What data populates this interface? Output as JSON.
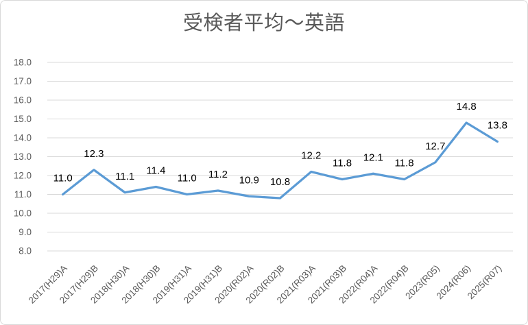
{
  "chart_data": {
    "type": "line",
    "title": "受検者平均〜英語",
    "categories": [
      "2017(H29)A",
      "2017(H29)B",
      "2018(H30)A",
      "2018(H30)B",
      "2019(H31)A",
      "2019(H31)B",
      "2020(R02)A",
      "2020(R02)B",
      "2021(R03)A",
      "2021(R03)B",
      "2022(R04)A",
      "2022(R04)B",
      "2023(R05)",
      "2024(R06)",
      "2025(R07)"
    ],
    "values": [
      11.0,
      12.3,
      11.1,
      11.4,
      11.0,
      11.2,
      10.9,
      10.8,
      12.2,
      11.8,
      12.1,
      11.8,
      12.7,
      14.8,
      13.8
    ],
    "data_labels": [
      "11.0",
      "12.3",
      "11.1",
      "11.4",
      "11.0",
      "11.2",
      "10.9",
      "10.8",
      "12.2",
      "11.8",
      "12.1",
      "11.8",
      "12.7",
      "14.8",
      "13.8"
    ],
    "y_ticks": [
      "18.0",
      "17.0",
      "16.0",
      "15.0",
      "14.0",
      "13.0",
      "12.0",
      "11.0",
      "10.0",
      "9.0",
      "8.0"
    ],
    "ylim": [
      8.0,
      18.0
    ],
    "y_step": 1.0,
    "xlabel": "",
    "ylabel": "",
    "grid": true,
    "legend": "none",
    "x_label_rotation_deg": -45
  },
  "style": {
    "line_color": "#5B9BD5",
    "gridline_color": "#D9D9D9",
    "axis_text_color": "#595959",
    "data_label_color": "#000000",
    "title_color": "#595959",
    "border_color": "#D9D9D9",
    "background_color": "#FFFFFF"
  }
}
